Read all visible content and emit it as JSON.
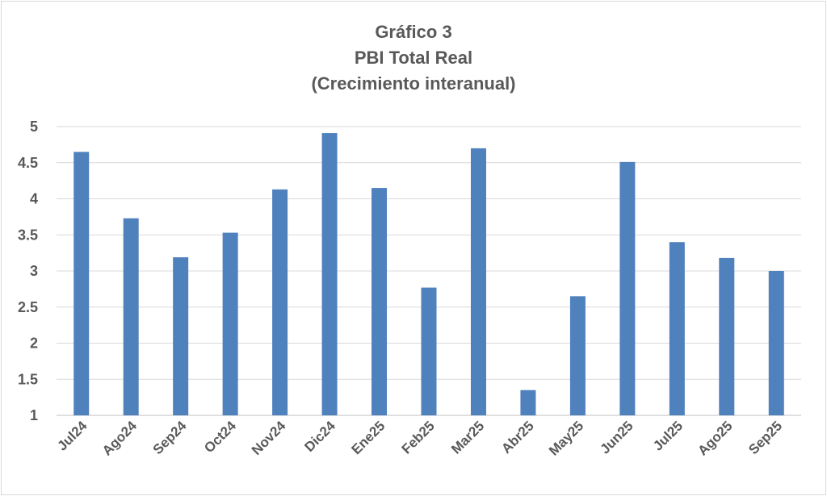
{
  "chart_data": {
    "type": "bar",
    "title_lines": [
      "Gráfico 3",
      "PBI Total Real",
      "(Crecimiento interanual)"
    ],
    "categories": [
      "Jul24",
      "Ago24",
      "Sep24",
      "Oct24",
      "Nov24",
      "Dic24",
      "Ene25",
      "Feb25",
      "Mar25",
      "Abr25",
      "May25",
      "Jun25",
      "Jul25",
      "Ago25",
      "Sep25"
    ],
    "values": [
      4.65,
      3.73,
      3.19,
      3.53,
      4.13,
      4.91,
      4.15,
      2.77,
      4.7,
      1.35,
      2.65,
      4.51,
      3.4,
      3.18,
      3.0
    ],
    "y_ticks": [
      "1",
      "1.5",
      "2",
      "2.5",
      "3",
      "3.5",
      "4",
      "4.5",
      "5"
    ],
    "ylim": [
      1,
      5
    ],
    "grid": true,
    "bar_color": "#4f81bd",
    "grid_color": "#d9d9d9",
    "text_color": "#595959"
  }
}
